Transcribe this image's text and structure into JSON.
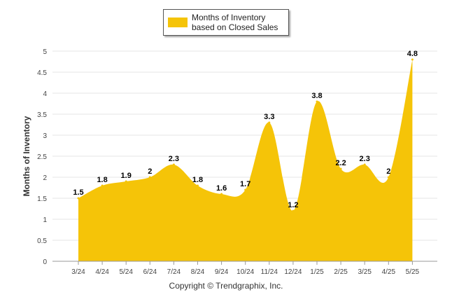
{
  "legend": {
    "label": "Months of Inventory based on Closed Sales"
  },
  "credit": "Copyright © Trendgraphix, Inc.",
  "colors": {
    "area": "#F5C408",
    "grid": "#E4E4E4",
    "axis": "#999999"
  },
  "chart_data": {
    "type": "area",
    "categories": [
      "3/24",
      "4/24",
      "5/24",
      "6/24",
      "7/24",
      "8/24",
      "9/24",
      "10/24",
      "11/24",
      "12/24",
      "1/25",
      "2/25",
      "3/25",
      "4/25",
      "5/25"
    ],
    "series": [
      {
        "name": "Months of Inventory based on Closed Sales",
        "values": [
          1.5,
          1.8,
          1.9,
          2,
          2.3,
          1.8,
          1.6,
          1.7,
          3.3,
          1.2,
          3.8,
          2.2,
          2.3,
          2,
          4.8
        ]
      }
    ],
    "data_labels": [
      "1.5",
      "1.8",
      "1.9",
      "2",
      "2.3",
      "1.8",
      "1.6",
      "1.7",
      "3.3",
      "1.2",
      "3.8",
      "2.2",
      "2.3",
      "2",
      "4.8"
    ],
    "ylabel": "Months of Inventory",
    "ylim": [
      0,
      5
    ],
    "yticks": [
      "0",
      "0.5",
      "1",
      "1.5",
      "2",
      "2.5",
      "3",
      "3.5",
      "4",
      "4.5",
      "5"
    ],
    "grid": true,
    "legend_position": "top-center"
  }
}
